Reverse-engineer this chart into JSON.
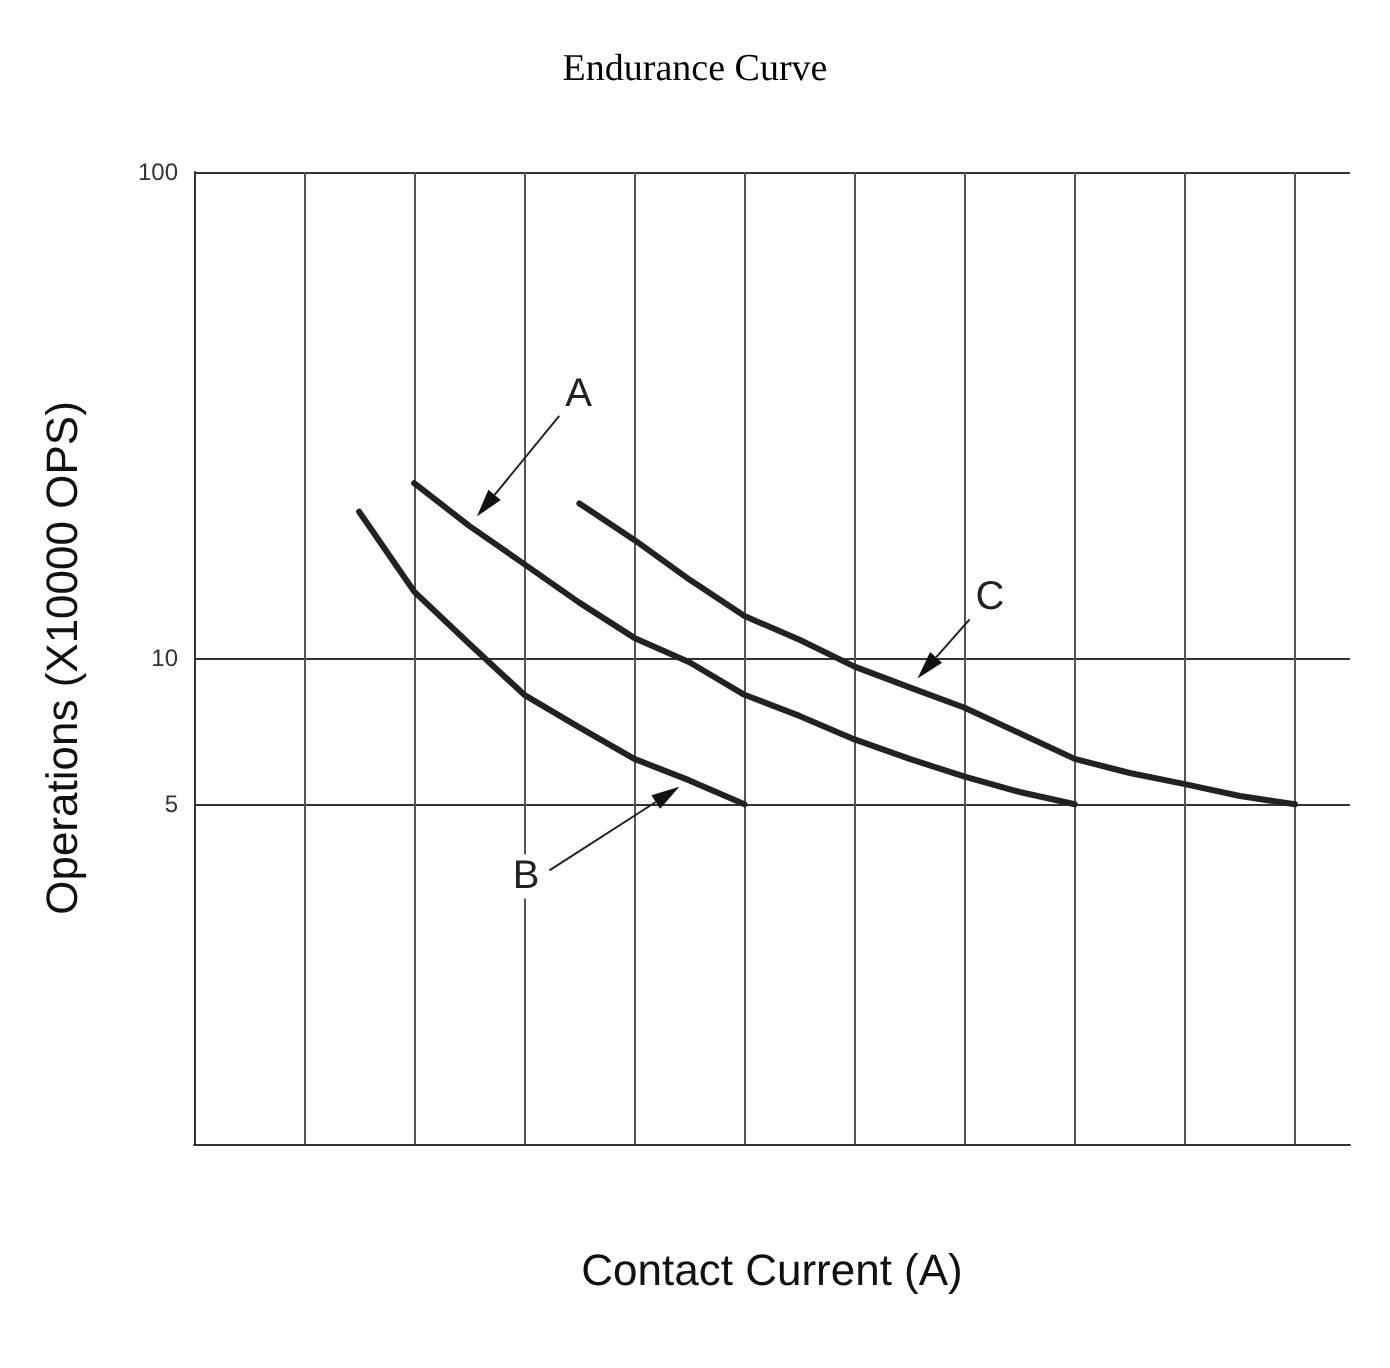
{
  "chart_data": {
    "type": "line",
    "title": "Endurance Curve",
    "xlabel": "Contact Current (A)",
    "ylabel": "Operations (X10000 OPS)",
    "categories": [
      null,
      null,
      null,
      null,
      null,
      null,
      null,
      null,
      null,
      null,
      null,
      null,
      null,
      null,
      null,
      null,
      null,
      null,
      null,
      null,
      null,
      null
    ],
    "series": [
      {
        "name": "A",
        "color": "#222222",
        "values": [
          null,
          null,
          null,
          null,
          22.9,
          18.7,
          15.6,
          13,
          11,
          9.8,
          8.4,
          7.6,
          6.8,
          6.2,
          5.7,
          5.3,
          5,
          null,
          null,
          null,
          null,
          null
        ]
      },
      {
        "name": "B",
        "color": "#222222",
        "values": [
          null,
          null,
          null,
          20,
          13.7,
          10.7,
          8.4,
          7.2,
          6.2,
          5.6,
          5,
          null,
          null,
          null,
          null,
          null,
          null,
          null,
          null,
          null,
          null,
          null
        ]
      },
      {
        "name": "C",
        "color": "#222222",
        "values": [
          null,
          null,
          null,
          null,
          null,
          null,
          null,
          20.8,
          17.5,
          14.5,
          12.2,
          10.9,
          9.6,
          8.7,
          7.9,
          7,
          6.2,
          5.8,
          5.5,
          5.2,
          5,
          null
        ]
      }
    ],
    "log": "y",
    "ylim": [
      1,
      100
    ],
    "yticks": [
      5,
      10,
      100
    ],
    "grid": true,
    "legend": false,
    "marker": "none",
    "line_style": "solid"
  }
}
